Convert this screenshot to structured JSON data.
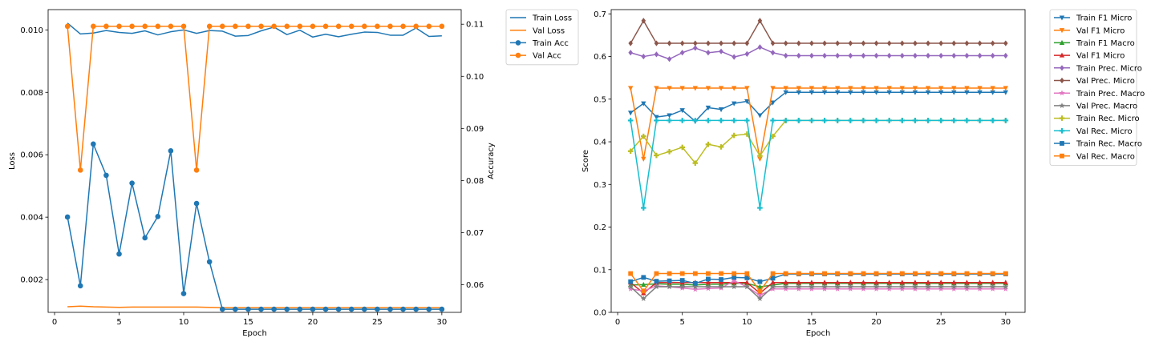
{
  "chart_data": [
    {
      "type": "line",
      "xlabel": "Epoch",
      "ylabel": "Loss",
      "y2label": "Accuracy",
      "xlim": [
        -0.5,
        31.5
      ],
      "ylim": [
        0.00095,
        0.01065
      ],
      "y2lim": [
        0.0547,
        0.1128
      ],
      "xticks": [
        0,
        5,
        10,
        15,
        20,
        25,
        30
      ],
      "yticks": [
        0.002,
        0.004,
        0.006,
        0.008,
        0.01
      ],
      "ytick_labels": [
        "0.002",
        "0.004",
        "0.006",
        "0.008",
        "0.010"
      ],
      "y2ticks": [
        0.06,
        0.07,
        0.08,
        0.09,
        0.1,
        0.11
      ],
      "y2tick_labels": [
        "0.06",
        "0.07",
        "0.08",
        "0.09",
        "0.10",
        "0.11"
      ],
      "legend_position": "outside-right",
      "x": [
        1,
        2,
        3,
        4,
        5,
        6,
        7,
        8,
        9,
        10,
        11,
        12,
        13,
        14,
        15,
        16,
        17,
        18,
        19,
        20,
        21,
        22,
        23,
        24,
        25,
        26,
        27,
        28,
        29,
        30
      ],
      "series": [
        {
          "name": "Train Loss",
          "axis": "left",
          "color": "#1f77b4",
          "marker": "none",
          "values": [
            0.01022,
            0.00987,
            0.0099,
            0.00998,
            0.00992,
            0.00989,
            0.00997,
            0.00984,
            0.00994,
            0.01,
            0.00989,
            0.00998,
            0.00996,
            0.0098,
            0.00982,
            0.00997,
            0.01009,
            0.00985,
            0.00999,
            0.00977,
            0.00986,
            0.00978,
            0.00986,
            0.00993,
            0.00992,
            0.00983,
            0.00983,
            0.01006,
            0.00979,
            0.00981
          ]
        },
        {
          "name": "Val Loss",
          "axis": "left",
          "color": "#ff7f0e",
          "marker": "none",
          "values": [
            0.00113,
            0.00115,
            0.00113,
            0.00112,
            0.00111,
            0.00112,
            0.00112,
            0.00112,
            0.00112,
            0.00112,
            0.00112,
            0.00111,
            0.0011,
            0.0011,
            0.0011,
            0.0011,
            0.0011,
            0.0011,
            0.0011,
            0.0011,
            0.0011,
            0.0011,
            0.0011,
            0.0011,
            0.0011,
            0.0011,
            0.0011,
            0.0011,
            0.0011,
            0.0011
          ]
        },
        {
          "name": "Train Acc",
          "axis": "right",
          "color": "#1f77b4",
          "marker": "circle",
          "values": [
            0.073,
            0.0598,
            0.087,
            0.081,
            0.0659,
            0.0795,
            0.069,
            0.0731,
            0.0857,
            0.0583,
            0.0756,
            0.0644,
            0.0553,
            0.0553,
            0.0553,
            0.0553,
            0.0553,
            0.0553,
            0.0553,
            0.0553,
            0.0553,
            0.0553,
            0.0553,
            0.0553,
            0.0553,
            0.0553,
            0.0553,
            0.0553,
            0.0553,
            0.0553
          ]
        },
        {
          "name": "Val Acc",
          "axis": "right",
          "color": "#ff7f0e",
          "marker": "circle",
          "values": [
            0.1096,
            0.082,
            0.1096,
            0.1096,
            0.1096,
            0.1096,
            0.1096,
            0.1096,
            0.1096,
            0.1096,
            0.082,
            0.1096,
            0.1096,
            0.1096,
            0.1096,
            0.1096,
            0.1096,
            0.1096,
            0.1096,
            0.1096,
            0.1096,
            0.1096,
            0.1096,
            0.1096,
            0.1096,
            0.1096,
            0.1096,
            0.1096,
            0.1096,
            0.1096
          ]
        }
      ]
    },
    {
      "type": "line",
      "xlabel": "Epoch",
      "ylabel": "Score",
      "xlim": [
        -0.5,
        31.5
      ],
      "ylim": [
        0,
        0.71
      ],
      "xticks": [
        0,
        5,
        10,
        15,
        20,
        25,
        30
      ],
      "yticks": [
        0.0,
        0.1,
        0.2,
        0.3,
        0.4,
        0.5,
        0.6,
        0.7
      ],
      "ytick_labels": [
        "0.0",
        "0.1",
        "0.2",
        "0.3",
        "0.4",
        "0.5",
        "0.6",
        "0.7"
      ],
      "legend_position": "outside-right",
      "x": [
        1,
        2,
        3,
        4,
        5,
        6,
        7,
        8,
        9,
        10,
        11,
        12,
        13,
        14,
        15,
        16,
        17,
        18,
        19,
        20,
        21,
        22,
        23,
        24,
        25,
        26,
        27,
        28,
        29,
        30
      ],
      "series": [
        {
          "name": "Train F1 Micro",
          "color": "#1f77b4",
          "marker": "triangle-down",
          "values": [
            0.468,
            0.49,
            0.458,
            0.462,
            0.474,
            0.448,
            0.48,
            0.476,
            0.49,
            0.495,
            0.462,
            0.492,
            0.516,
            0.516,
            0.516,
            0.516,
            0.516,
            0.516,
            0.516,
            0.516,
            0.516,
            0.516,
            0.516,
            0.516,
            0.516,
            0.516,
            0.516,
            0.516,
            0.516,
            0.516
          ]
        },
        {
          "name": "Val F1 Micro",
          "color": "#ff7f0e",
          "marker": "triangle-down",
          "values": [
            0.526,
            0.36,
            0.526,
            0.526,
            0.526,
            0.526,
            0.526,
            0.526,
            0.526,
            0.526,
            0.36,
            0.526,
            0.526,
            0.526,
            0.526,
            0.526,
            0.526,
            0.526,
            0.526,
            0.526,
            0.526,
            0.526,
            0.526,
            0.526,
            0.526,
            0.526,
            0.526,
            0.526,
            0.526,
            0.526
          ]
        },
        {
          "name": "Train F1 Macro",
          "color": "#2ca02c",
          "marker": "triangle-up",
          "values": [
            0.064,
            0.065,
            0.067,
            0.066,
            0.066,
            0.064,
            0.066,
            0.066,
            0.068,
            0.068,
            0.06,
            0.064,
            0.068,
            0.068,
            0.068,
            0.068,
            0.068,
            0.068,
            0.068,
            0.068,
            0.068,
            0.068,
            0.068,
            0.068,
            0.068,
            0.068,
            0.068,
            0.068,
            0.068,
            0.068
          ]
        },
        {
          "name": "Val F1 Micro",
          "color": "#d62728",
          "marker": "triangle-up",
          "values": [
            0.07,
            0.045,
            0.07,
            0.07,
            0.07,
            0.07,
            0.07,
            0.07,
            0.07,
            0.07,
            0.045,
            0.07,
            0.07,
            0.07,
            0.07,
            0.07,
            0.07,
            0.07,
            0.07,
            0.07,
            0.07,
            0.07,
            0.07,
            0.07,
            0.07,
            0.07,
            0.07,
            0.07,
            0.07,
            0.07
          ]
        },
        {
          "name": "Train Prec. Micro",
          "color": "#9467bd",
          "marker": "diamond",
          "values": [
            0.609,
            0.6,
            0.605,
            0.594,
            0.609,
            0.62,
            0.609,
            0.612,
            0.599,
            0.606,
            0.622,
            0.609,
            0.602,
            0.602,
            0.602,
            0.602,
            0.602,
            0.602,
            0.602,
            0.602,
            0.602,
            0.602,
            0.602,
            0.602,
            0.602,
            0.602,
            0.602,
            0.602,
            0.602,
            0.602
          ]
        },
        {
          "name": "Val Prec. Micro",
          "color": "#8c564b",
          "marker": "diamond",
          "values": [
            0.631,
            0.684,
            0.631,
            0.631,
            0.631,
            0.631,
            0.631,
            0.631,
            0.631,
            0.631,
            0.684,
            0.631,
            0.631,
            0.631,
            0.631,
            0.631,
            0.631,
            0.631,
            0.631,
            0.631,
            0.631,
            0.631,
            0.631,
            0.631,
            0.631,
            0.631,
            0.631,
            0.631,
            0.631,
            0.631
          ]
        },
        {
          "name": "Train Prec. Macro",
          "color": "#e377c2",
          "marker": "star",
          "values": [
            0.055,
            0.05,
            0.062,
            0.06,
            0.057,
            0.054,
            0.056,
            0.057,
            0.074,
            0.06,
            0.04,
            0.055,
            0.055,
            0.055,
            0.055,
            0.055,
            0.055,
            0.055,
            0.055,
            0.055,
            0.055,
            0.055,
            0.055,
            0.055,
            0.055,
            0.055,
            0.055,
            0.055,
            0.055,
            0.055
          ]
        },
        {
          "name": "Val Prec. Macro",
          "color": "#7f7f7f",
          "marker": "star",
          "values": [
            0.06,
            0.032,
            0.06,
            0.06,
            0.06,
            0.06,
            0.06,
            0.06,
            0.06,
            0.06,
            0.032,
            0.06,
            0.06,
            0.06,
            0.06,
            0.06,
            0.06,
            0.06,
            0.06,
            0.06,
            0.06,
            0.06,
            0.06,
            0.06,
            0.06,
            0.06,
            0.06,
            0.06,
            0.06,
            0.06
          ]
        },
        {
          "name": "Train Rec. Micro",
          "color": "#bcbd22",
          "marker": "plus",
          "values": [
            0.378,
            0.413,
            0.368,
            0.377,
            0.387,
            0.35,
            0.394,
            0.388,
            0.415,
            0.418,
            0.367,
            0.413,
            0.45,
            0.45,
            0.45,
            0.45,
            0.45,
            0.45,
            0.45,
            0.45,
            0.45,
            0.45,
            0.45,
            0.45,
            0.45,
            0.45,
            0.45,
            0.45,
            0.45,
            0.45
          ]
        },
        {
          "name": "Val Rec. Micro",
          "color": "#17becf",
          "marker": "plus",
          "values": [
            0.45,
            0.245,
            0.45,
            0.45,
            0.45,
            0.45,
            0.45,
            0.45,
            0.45,
            0.45,
            0.245,
            0.45,
            0.45,
            0.45,
            0.45,
            0.45,
            0.45,
            0.45,
            0.45,
            0.45,
            0.45,
            0.45,
            0.45,
            0.45,
            0.45,
            0.45,
            0.45,
            0.45,
            0.45,
            0.45
          ]
        },
        {
          "name": "Train Rec. Macro",
          "color": "#1f77b4",
          "marker": "square",
          "values": [
            0.072,
            0.082,
            0.073,
            0.074,
            0.075,
            0.068,
            0.078,
            0.077,
            0.082,
            0.081,
            0.072,
            0.08,
            0.09,
            0.09,
            0.09,
            0.09,
            0.09,
            0.09,
            0.09,
            0.09,
            0.09,
            0.09,
            0.09,
            0.09,
            0.09,
            0.09,
            0.09,
            0.09,
            0.09,
            0.09
          ]
        },
        {
          "name": "Val Rec. Macro",
          "color": "#ff7f0e",
          "marker": "square",
          "values": [
            0.091,
            0.05,
            0.091,
            0.091,
            0.091,
            0.091,
            0.091,
            0.091,
            0.091,
            0.091,
            0.05,
            0.091,
            0.091,
            0.091,
            0.091,
            0.091,
            0.091,
            0.091,
            0.091,
            0.091,
            0.091,
            0.091,
            0.091,
            0.091,
            0.091,
            0.091,
            0.091,
            0.091,
            0.091,
            0.091
          ]
        }
      ]
    }
  ]
}
